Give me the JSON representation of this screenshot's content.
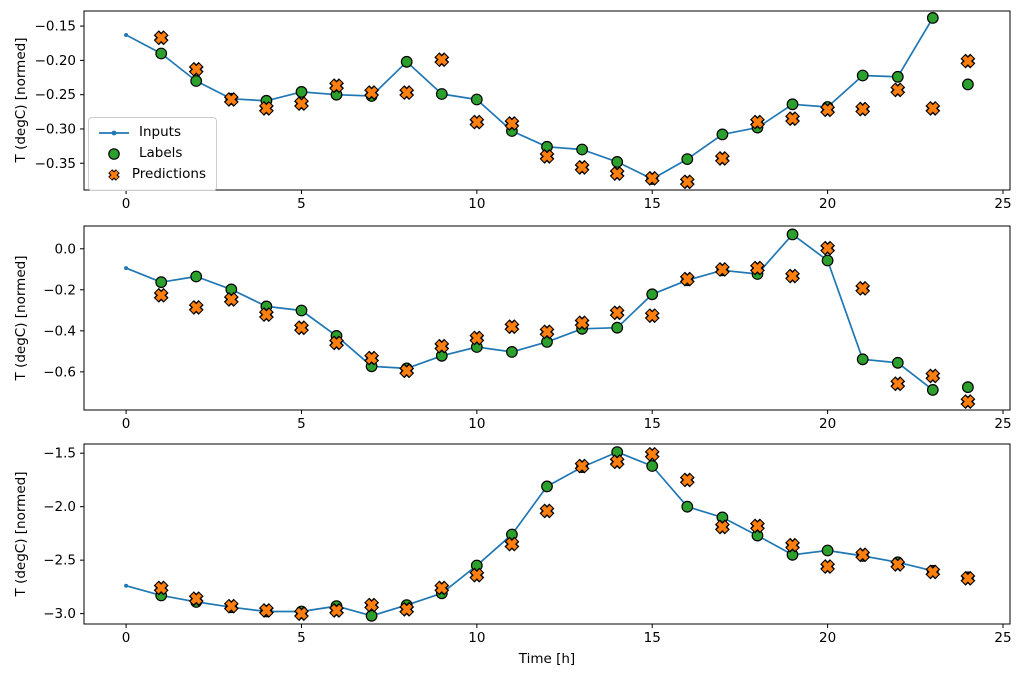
{
  "figure": {
    "background": "#ffffff",
    "xlabel": "Time [h]",
    "xlim": [
      -1.2,
      25.2
    ],
    "x_ticks": {
      "values": [
        0,
        5,
        10,
        15,
        20,
        25
      ],
      "labels": [
        "0",
        "5",
        "10",
        "15",
        "20",
        "25"
      ]
    },
    "colors": {
      "inputs": "#1f77b4",
      "labels": "#2ca02c",
      "predictions": "#ff7f0e",
      "marker_edge": "#000000",
      "axis": "#000000",
      "legend_border": "#cccccc"
    },
    "legend": {
      "position": "upper-left-of-first-subplot",
      "items": [
        {
          "key": "inputs",
          "label": "Inputs"
        },
        {
          "key": "labels",
          "label": "Labels"
        },
        {
          "key": "predictions",
          "label": "Predictions"
        }
      ]
    }
  },
  "chart_data": [
    {
      "type": "line",
      "subtype": "line+scatter",
      "ylabel": "T (degC) [normed]",
      "ylim": [
        -0.389,
        -0.128
      ],
      "yticks": {
        "values": [
          -0.15,
          -0.2,
          -0.25,
          -0.3,
          -0.35
        ],
        "labels": [
          "−0.15",
          "−0.20",
          "−0.25",
          "−0.30",
          "−0.35"
        ]
      },
      "grid": false,
      "series": [
        {
          "name": "Inputs",
          "style": "line-with-dots",
          "x": [
            0,
            1,
            2,
            3,
            4,
            5,
            6,
            7,
            8,
            9,
            10,
            11,
            12,
            13,
            14,
            15,
            16,
            17,
            18,
            19,
            20,
            21,
            22,
            23
          ],
          "y": [
            -0.163,
            -0.19,
            -0.23,
            -0.256,
            -0.259,
            -0.246,
            -0.25,
            -0.252,
            -0.202,
            -0.249,
            -0.257,
            -0.303,
            -0.326,
            -0.33,
            -0.348,
            -0.373,
            -0.344,
            -0.308,
            -0.298,
            -0.264,
            -0.268,
            -0.222,
            -0.224,
            -0.138
          ]
        },
        {
          "name": "Labels",
          "style": "scatter-circle",
          "x": [
            1,
            2,
            3,
            4,
            5,
            6,
            7,
            8,
            9,
            10,
            11,
            12,
            13,
            14,
            15,
            16,
            17,
            18,
            19,
            20,
            21,
            22,
            23,
            24
          ],
          "y": [
            -0.19,
            -0.23,
            -0.256,
            -0.259,
            -0.246,
            -0.25,
            -0.252,
            -0.202,
            -0.249,
            -0.257,
            -0.303,
            -0.326,
            -0.33,
            -0.348,
            -0.373,
            -0.344,
            -0.308,
            -0.298,
            -0.264,
            -0.268,
            -0.222,
            -0.224,
            -0.138,
            -0.235
          ]
        },
        {
          "name": "Predictions",
          "style": "scatter-x",
          "x": [
            1,
            2,
            3,
            4,
            5,
            6,
            7,
            8,
            9,
            10,
            11,
            12,
            13,
            14,
            15,
            16,
            17,
            18,
            19,
            20,
            21,
            22,
            23,
            24
          ],
          "y": [
            -0.167,
            -0.213,
            -0.257,
            -0.27,
            -0.263,
            -0.237,
            -0.247,
            -0.247,
            -0.199,
            -0.29,
            -0.292,
            -0.34,
            -0.356,
            -0.365,
            -0.372,
            -0.377,
            -0.343,
            -0.29,
            -0.285,
            -0.272,
            -0.271,
            -0.243,
            -0.27,
            -0.201
          ]
        }
      ]
    },
    {
      "type": "line",
      "subtype": "line+scatter",
      "ylabel": "T (degC) [normed]",
      "ylim": [
        -0.786,
        0.111
      ],
      "yticks": {
        "values": [
          0.0,
          -0.2,
          -0.4,
          -0.6
        ],
        "labels": [
          "0.0",
          "−0.2",
          "−0.4",
          "−0.6"
        ]
      },
      "grid": false,
      "series": [
        {
          "name": "Inputs",
          "style": "line-with-dots",
          "x": [
            0,
            1,
            2,
            3,
            4,
            5,
            6,
            7,
            8,
            9,
            10,
            11,
            12,
            13,
            14,
            15,
            16,
            17,
            18,
            19,
            20,
            21,
            22,
            23
          ],
          "y": [
            -0.094,
            -0.163,
            -0.135,
            -0.198,
            -0.281,
            -0.301,
            -0.425,
            -0.573,
            -0.583,
            -0.522,
            -0.479,
            -0.503,
            -0.454,
            -0.39,
            -0.385,
            -0.222,
            -0.153,
            -0.105,
            -0.123,
            0.07,
            -0.057,
            -0.539,
            -0.556,
            -0.688
          ]
        },
        {
          "name": "Labels",
          "style": "scatter-circle",
          "x": [
            1,
            2,
            3,
            4,
            5,
            6,
            7,
            8,
            9,
            10,
            11,
            12,
            13,
            14,
            15,
            16,
            17,
            18,
            19,
            20,
            21,
            22,
            23,
            24
          ],
          "y": [
            -0.163,
            -0.135,
            -0.198,
            -0.281,
            -0.301,
            -0.425,
            -0.573,
            -0.583,
            -0.522,
            -0.479,
            -0.503,
            -0.454,
            -0.39,
            -0.385,
            -0.222,
            -0.153,
            -0.105,
            -0.123,
            0.07,
            -0.057,
            -0.539,
            -0.556,
            -0.688,
            -0.675
          ]
        },
        {
          "name": "Predictions",
          "style": "scatter-x",
          "x": [
            1,
            2,
            3,
            4,
            5,
            6,
            7,
            8,
            9,
            10,
            11,
            12,
            13,
            14,
            15,
            16,
            17,
            18,
            19,
            20,
            21,
            22,
            23,
            24
          ],
          "y": [
            -0.227,
            -0.286,
            -0.247,
            -0.321,
            -0.385,
            -0.459,
            -0.533,
            -0.595,
            -0.475,
            -0.435,
            -0.38,
            -0.405,
            -0.361,
            -0.312,
            -0.326,
            -0.148,
            -0.101,
            -0.094,
            -0.133,
            0.003,
            -0.193,
            -0.658,
            -0.62,
            -0.745
          ]
        }
      ]
    },
    {
      "type": "line",
      "subtype": "line+scatter",
      "ylabel": "T (degC) [normed]",
      "ylim": [
        -3.097,
        -1.414
      ],
      "yticks": {
        "values": [
          -1.5,
          -2.0,
          -2.5,
          -3.0
        ],
        "labels": [
          "−1.5",
          "−2.0",
          "−2.5",
          "−3.0"
        ]
      },
      "grid": false,
      "series": [
        {
          "name": "Inputs",
          "style": "line-with-dots",
          "x": [
            0,
            1,
            2,
            3,
            4,
            5,
            6,
            7,
            8,
            9,
            10,
            11,
            12,
            13,
            14,
            15,
            16,
            17,
            18,
            19,
            20,
            21,
            22,
            23
          ],
          "y": [
            -2.74,
            -2.83,
            -2.89,
            -2.94,
            -2.98,
            -2.98,
            -2.93,
            -3.02,
            -2.92,
            -2.81,
            -2.55,
            -2.26,
            -1.81,
            -1.63,
            -1.49,
            -1.62,
            -2.0,
            -2.1,
            -2.27,
            -2.45,
            -2.41,
            -2.46,
            -2.52,
            -2.6
          ]
        },
        {
          "name": "Labels",
          "style": "scatter-circle",
          "x": [
            1,
            2,
            3,
            4,
            5,
            6,
            7,
            8,
            9,
            10,
            11,
            12,
            13,
            14,
            15,
            16,
            17,
            18,
            19,
            20,
            21,
            22,
            23,
            24
          ],
          "y": [
            -2.83,
            -2.89,
            -2.94,
            -2.98,
            -2.98,
            -2.93,
            -3.02,
            -2.92,
            -2.81,
            -2.55,
            -2.26,
            -1.81,
            -1.63,
            -1.49,
            -1.62,
            -2.0,
            -2.1,
            -2.27,
            -2.45,
            -2.41,
            -2.46,
            -2.52,
            -2.6,
            -2.66
          ]
        },
        {
          "name": "Predictions",
          "style": "scatter-x",
          "x": [
            1,
            2,
            3,
            4,
            5,
            6,
            7,
            8,
            9,
            10,
            11,
            12,
            13,
            14,
            15,
            16,
            17,
            18,
            19,
            20,
            21,
            22,
            23,
            24
          ],
          "y": [
            -2.76,
            -2.86,
            -2.93,
            -2.97,
            -3.0,
            -2.97,
            -2.92,
            -2.96,
            -2.76,
            -2.64,
            -2.35,
            -2.04,
            -1.62,
            -1.58,
            -1.51,
            -1.75,
            -2.19,
            -2.18,
            -2.36,
            -2.56,
            -2.45,
            -2.54,
            -2.61,
            -2.67
          ]
        }
      ]
    }
  ]
}
